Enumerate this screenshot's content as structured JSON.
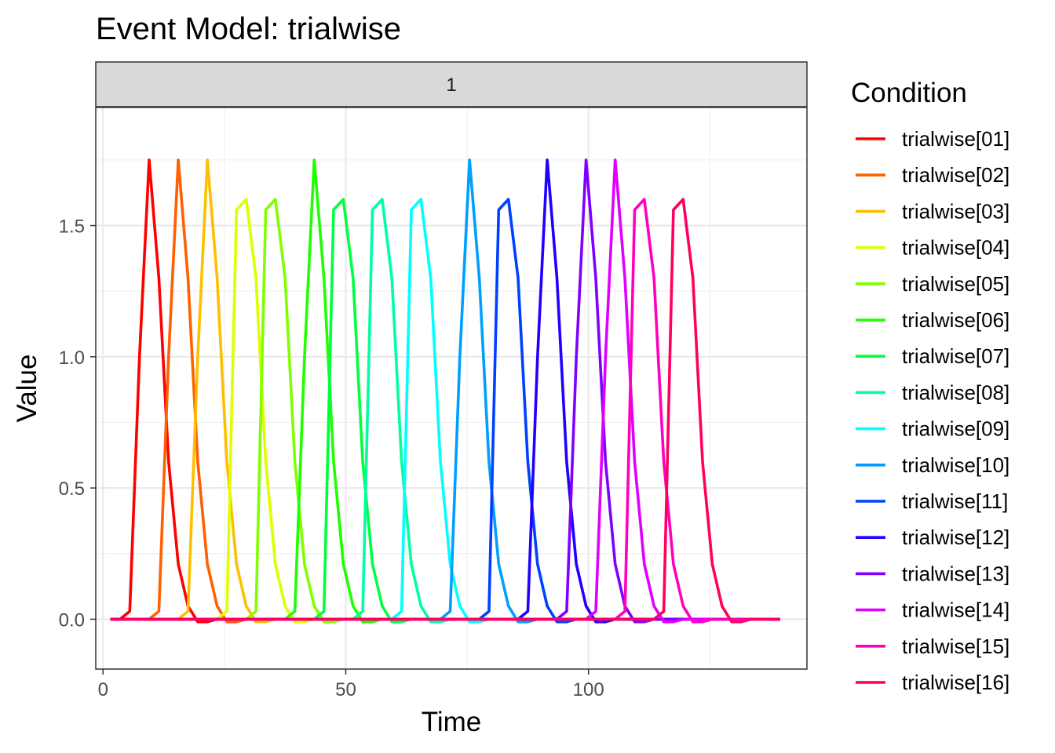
{
  "chart_data": {
    "type": "line",
    "title": "Event Model: trialwise",
    "facet_label": "1",
    "xlabel": "Time",
    "ylabel": "Value",
    "xlim": [
      -1.5,
      145
    ],
    "ylim": [
      -0.19,
      1.95
    ],
    "x_ticks": [
      0,
      50,
      100
    ],
    "x_tick_labels": [
      "0",
      "50",
      "100"
    ],
    "y_ticks": [
      0,
      0.5,
      1,
      1.5
    ],
    "y_tick_labels": [
      "0.0",
      "0.5",
      "1.0",
      "1.5"
    ],
    "grid": true,
    "legend_title": "Condition",
    "legend_position": "right",
    "x_range": [
      1.5,
      139.5
    ],
    "x_step": 2,
    "series": [
      {
        "name": "trialwise[01]",
        "color": "#FF0000",
        "peak_x": 11.5,
        "peak": 1.75
      },
      {
        "name": "trialwise[02]",
        "color": "#FF6000",
        "peak_x": 17.5,
        "peak": 1.75
      },
      {
        "name": "trialwise[03]",
        "color": "#FFBF00",
        "peak_x": 23.5,
        "peak": 1.75
      },
      {
        "name": "trialwise[04]",
        "color": "#DFFF00",
        "peak_x": 31.5,
        "peak": 1.6,
        "plateau": true
      },
      {
        "name": "trialwise[05]",
        "color": "#80FF00",
        "peak_x": 37.5,
        "peak": 1.6,
        "plateau": true
      },
      {
        "name": "trialwise[06]",
        "color": "#20FF00",
        "peak_x": 45.5,
        "peak": 1.75
      },
      {
        "name": "trialwise[07]",
        "color": "#00FF40",
        "peak_x": 51.5,
        "peak": 1.6,
        "plateau": true
      },
      {
        "name": "trialwise[08]",
        "color": "#00FF9F",
        "peak_x": 59.5,
        "peak": 1.6,
        "plateau": true
      },
      {
        "name": "trialwise[09]",
        "color": "#00FFFF",
        "peak_x": 67.5,
        "peak": 1.6,
        "plateau": true
      },
      {
        "name": "trialwise[10]",
        "color": "#009FFF",
        "peak_x": 77.5,
        "peak": 1.75
      },
      {
        "name": "trialwise[11]",
        "color": "#0040FF",
        "peak_x": 85.5,
        "peak": 1.6,
        "plateau": true
      },
      {
        "name": "trialwise[12]",
        "color": "#2000FF",
        "peak_x": 93.5,
        "peak": 1.75
      },
      {
        "name": "trialwise[13]",
        "color": "#8000FF",
        "peak_x": 101.5,
        "peak": 1.75
      },
      {
        "name": "trialwise[14]",
        "color": "#DF00FF",
        "peak_x": 107.5,
        "peak": 1.75
      },
      {
        "name": "trialwise[15]",
        "color": "#FF00BF",
        "peak_x": 113.5,
        "peak": 1.6,
        "plateau": true
      },
      {
        "name": "trialwise[16]",
        "color": "#FF0060",
        "peak_x": 121.5,
        "peak": 1.6,
        "plateau": true
      }
    ]
  }
}
